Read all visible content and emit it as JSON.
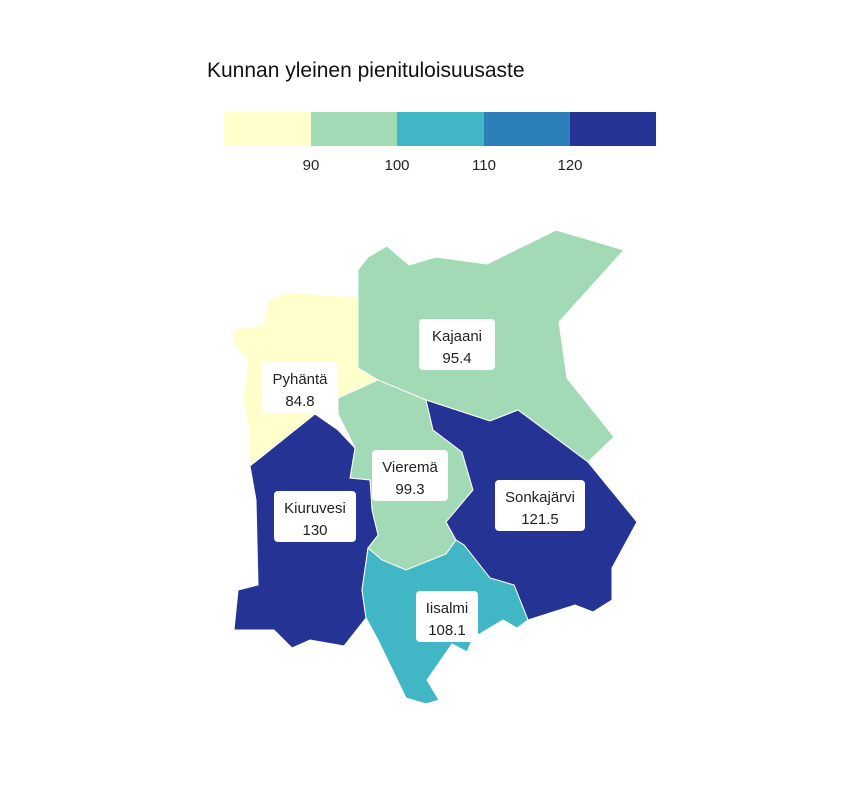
{
  "title": "Kunnan yleinen pienituloisuusaste",
  "legend": {
    "ticks": [
      "90",
      "100",
      "110",
      "120"
    ],
    "bins": [
      {
        "color": "#ffffcc"
      },
      {
        "color": "#a1dab4"
      },
      {
        "color": "#41b6c4"
      },
      {
        "color": "#2c7fb8"
      },
      {
        "color": "#253494"
      }
    ]
  },
  "regions": [
    {
      "name": "Kajaani",
      "value": "95.4",
      "color": "#a1dab4"
    },
    {
      "name": "Pyhäntä",
      "value": "84.8",
      "color": "#ffffcc"
    },
    {
      "name": "Vieremä",
      "value": "99.3",
      "color": "#a1dab4"
    },
    {
      "name": "Kiuruvesi",
      "value": "130",
      "color": "#253494"
    },
    {
      "name": "Sonkajärvi",
      "value": "121.5",
      "color": "#253494"
    },
    {
      "name": "Iisalmi",
      "value": "108.1",
      "color": "#41b6c4"
    }
  ]
}
